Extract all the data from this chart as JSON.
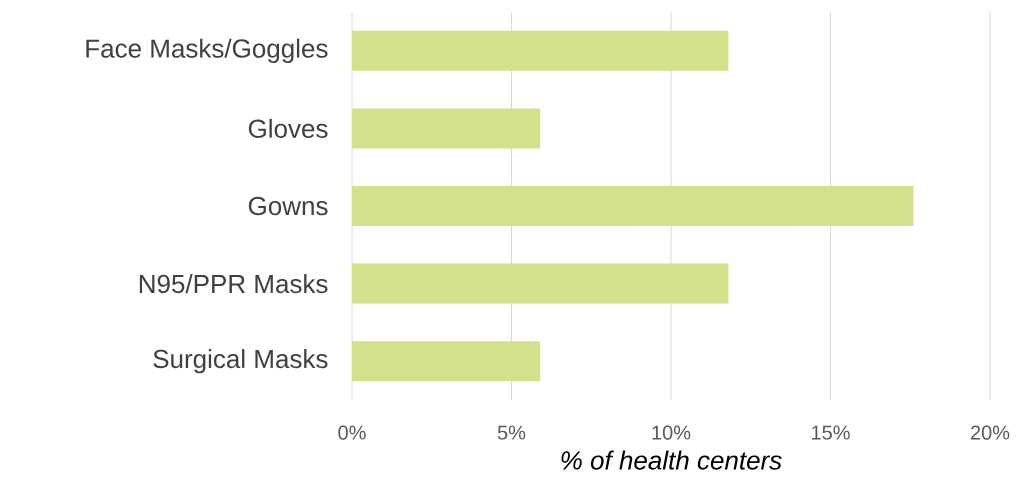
{
  "chart_data": {
    "type": "bar",
    "orientation": "horizontal",
    "categories": [
      "Face Masks/Goggles",
      "Gloves",
      "Gowns",
      "N95/PPR Masks",
      "Surgical Masks"
    ],
    "values": [
      11.8,
      5.9,
      17.6,
      11.8,
      5.9
    ],
    "color": "#d4e08a",
    "xlabel": "% of health centers",
    "xlim": [
      0,
      20
    ],
    "xticks": [
      {
        "value": 0,
        "label": "0%"
      },
      {
        "value": 5,
        "label": "5%"
      },
      {
        "value": 10,
        "label": "10%"
      },
      {
        "value": 15,
        "label": "15%"
      },
      {
        "value": 20,
        "label": "20%"
      }
    ],
    "grid": "x"
  }
}
